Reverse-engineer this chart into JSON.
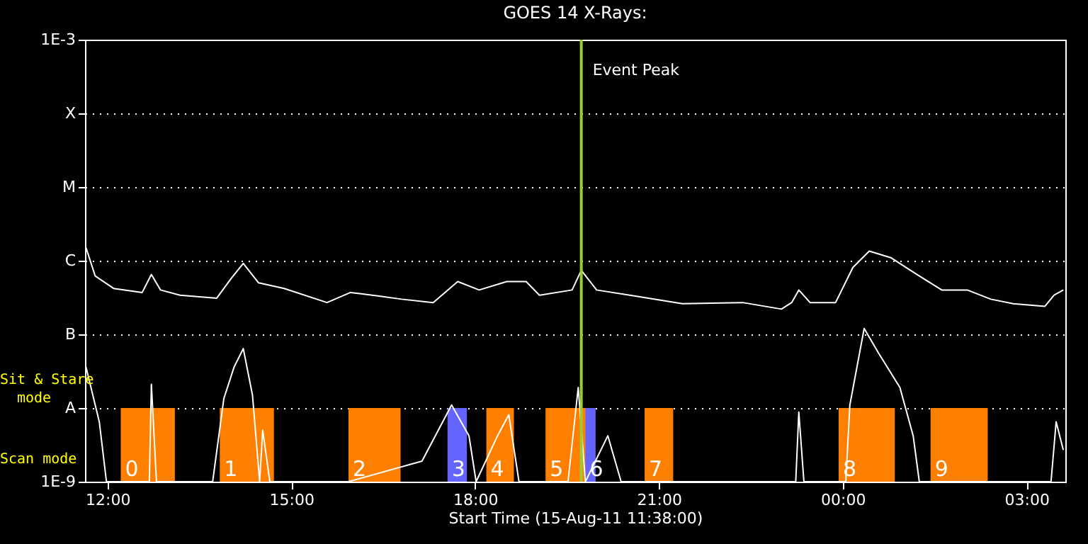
{
  "chart_data": {
    "type": "line",
    "title": "GOES 14 X-Rays:",
    "xlabel": "Start Time (15-Aug-11 11:38:00)",
    "xlim": [
      "--08-15T11:38",
      "--08-16T03:38"
    ],
    "xticks": [
      {
        "value": "--08-15T12:00",
        "label": "12:00"
      },
      {
        "value": "--08-15T15:00",
        "label": "15:00"
      },
      {
        "value": "--08-15T18:00",
        "label": "18:00"
      },
      {
        "value": "--08-15T21:00",
        "label": "21:00"
      },
      {
        "value": "--08-16T00:00",
        "label": "00:00"
      },
      {
        "value": "--08-16T03:00",
        "label": "03:00"
      }
    ],
    "ylim": [
      1e-09,
      0.001
    ],
    "yticks": [
      {
        "value": 1e-09,
        "label": "1E-9"
      },
      {
        "value": 1e-08,
        "label": "A"
      },
      {
        "value": 1e-07,
        "label": "B"
      },
      {
        "value": 1e-06,
        "label": "C"
      },
      {
        "value": 1e-05,
        "label": "M"
      },
      {
        "value": 0.0001,
        "label": "X"
      },
      {
        "value": 0.001,
        "label": "1E-3"
      }
    ],
    "log": true,
    "grid": "y",
    "series": [
      {
        "color": "#ffffff",
        "x": [
          "--08-15T11:39",
          "--08-15T11:48",
          "--08-15T12:06",
          "--08-15T12:34",
          "--08-15T12:43",
          "--08-15T12:52",
          "--08-15T13:11",
          "--08-15T13:47",
          "--08-15T14:01",
          "--08-15T14:13",
          "--08-15T14:28",
          "--08-15T14:53",
          "--08-15T15:35",
          "--08-15T15:58",
          "--08-15T16:26",
          "--08-15T16:48",
          "--08-15T17:19",
          "--08-15T17:43",
          "--08-15T18:04",
          "--08-15T18:31",
          "--08-15T18:50",
          "--08-15T19:03",
          "--08-15T19:35",
          "--08-15T19:44",
          "--08-15T19:59",
          "--08-15T20:37",
          "--08-15T21:23",
          "--08-15T22:22",
          "--08-15T23:00",
          "--08-15T23:10",
          "--08-15T23:17",
          "--08-15T23:28",
          "--08-15T23:53",
          "--08-16T00:10",
          "--08-16T00:26",
          "--08-16T00:47",
          "--08-16T01:15",
          "--08-16T01:37",
          "--08-16T02:02",
          "--08-16T02:25",
          "--08-16T02:47",
          "--08-16T03:18",
          "--08-16T03:27",
          "--08-16T03:36"
        ],
        "values": [
          1.5e-06,
          6.2e-07,
          4.2e-07,
          3.7e-07,
          6.5e-07,
          4e-07,
          3.4e-07,
          3.1e-07,
          5.7e-07,
          9.2e-07,
          5e-07,
          4.2e-07,
          2.7e-07,
          3.7e-07,
          3.3e-07,
          3e-07,
          2.7e-07,
          5.2e-07,
          4e-07,
          5.2e-07,
          5.2e-07,
          3.4e-07,
          4e-07,
          7.4e-07,
          4e-07,
          3.3e-07,
          2.6e-07,
          2.7e-07,
          2.2e-07,
          2.7e-07,
          4e-07,
          2.7e-07,
          2.7e-07,
          8.1e-07,
          1.35e-06,
          1.1e-06,
          6.2e-07,
          4e-07,
          4e-07,
          3e-07,
          2.6e-07,
          2.4e-07,
          3.4e-07,
          4e-07
        ]
      },
      {
        "color": "#ffffff",
        "x": [
          "--08-15T11:39",
          "--08-15T11:52",
          "--08-15T11:59",
          "--08-15T12:27",
          "--08-15T12:41",
          "--08-15T12:43",
          "--08-15T12:48",
          "--08-15T13:43",
          "--08-15T13:54",
          "--08-15T14:04",
          "--08-15T14:13",
          "--08-15T14:22",
          "--08-15T14:29",
          "--08-15T14:32",
          "--08-15T14:39",
          "--08-15T15:56",
          "--08-15T17:08",
          "--08-15T17:37",
          "--08-15T17:54",
          "--08-15T18:01",
          "--08-15T18:22",
          "--08-15T18:33",
          "--08-15T18:43",
          "--08-15T19:31",
          "--08-15T19:41",
          "--08-15T19:48",
          "--08-15T20:10",
          "--08-15T20:23",
          "--08-15T23:14",
          "--08-15T23:17",
          "--08-15T23:22",
          "--08-16T00:03",
          "--08-16T00:07",
          "--08-16T00:21",
          "--08-16T00:35",
          "--08-16T00:56",
          "--08-16T01:09",
          "--08-16T01:15",
          "--08-16T03:24",
          "--08-16T03:29",
          "--08-16T03:36"
        ],
        "values": [
          3.6e-08,
          6.5e-09,
          1e-09,
          1e-09,
          1e-09,
          2.1e-08,
          1e-09,
          1e-09,
          1.35e-08,
          3.6e-08,
          6.4e-08,
          1.5e-08,
          1e-09,
          5e-09,
          1e-09,
          1e-09,
          1.9e-09,
          1.1e-08,
          4.2e-09,
          1e-09,
          4.2e-09,
          8.1e-09,
          1e-09,
          1e-09,
          1.9e-08,
          1e-09,
          4.2e-09,
          1e-09,
          1e-09,
          8.8e-09,
          1e-09,
          1e-09,
          1.1e-08,
          1.2e-07,
          5.6e-08,
          1.9e-08,
          4.2e-09,
          1e-09,
          1e-09,
          6.5e-09,
          2.7e-09
        ]
      }
    ],
    "ref_lines": [
      {
        "axis": "x",
        "value": "--08-15T19:44",
        "label": "Event Peak",
        "color": "#9acd32"
      }
    ],
    "bands": [
      {
        "axis": "x",
        "from": "--08-15T12:13",
        "to": "--08-15T13:06",
        "label": "0",
        "color": "#ff7f00"
      },
      {
        "axis": "x",
        "from": "--08-15T13:50",
        "to": "--08-15T14:43",
        "label": "1",
        "color": "#ff7f00"
      },
      {
        "axis": "x",
        "from": "--08-15T15:56",
        "to": "--08-15T16:47",
        "label": "2",
        "color": "#ff7f00"
      },
      {
        "axis": "x",
        "from": "--08-15T17:33",
        "to": "--08-15T17:52",
        "label": "3",
        "color": "#6464ff"
      },
      {
        "axis": "x",
        "from": "--08-15T18:11",
        "to": "--08-15T18:38",
        "label": "4",
        "color": "#ff7f00"
      },
      {
        "axis": "x",
        "from": "--08-15T19:09",
        "to": "--08-15T19:49",
        "label": "5",
        "color": "#ff7f00"
      },
      {
        "axis": "x",
        "from": "--08-15T19:48",
        "to": "--08-15T19:58",
        "label": "6",
        "color": "#6464ff"
      },
      {
        "axis": "x",
        "from": "--08-15T20:46",
        "to": "--08-15T21:14",
        "label": "7",
        "color": "#ff7f00"
      },
      {
        "axis": "x",
        "from": "--08-15T23:56",
        "to": "--08-16T00:51",
        "label": "8",
        "color": "#ff7f00"
      },
      {
        "axis": "x",
        "from": "--08-16T01:26",
        "to": "--08-16T02:22",
        "label": "9",
        "color": "#ff7f00"
      }
    ],
    "annotations": [
      "Sit & Stare\nmode",
      "Scan mode"
    ]
  }
}
